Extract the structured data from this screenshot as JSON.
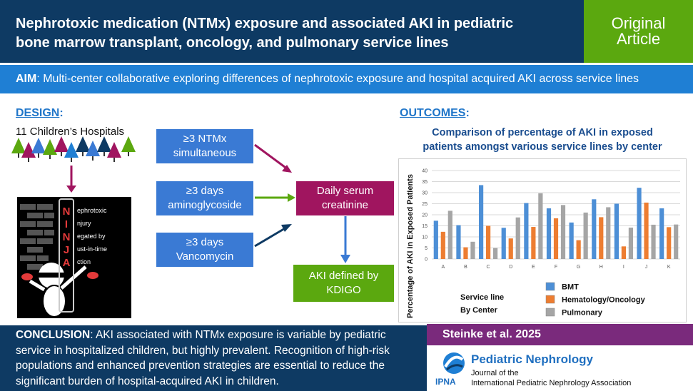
{
  "header": {
    "title_line1": "Nephrotoxic medication (NTMx) exposure and associated AKI in pediatric",
    "title_line2": "bone marrow transplant, oncology, and pulmonary service lines",
    "badge_line1": "Original",
    "badge_line2": "Article"
  },
  "aim": {
    "label": "AIM",
    "text": ": Multi-center collaborative exploring differences of nephrotoxic exposure and hospital acquired AKI across service lines"
  },
  "design": {
    "heading": "DESIGN",
    "colon": ":",
    "hospitals": "11 Children’s Hospitals",
    "ninja_letters": [
      "N",
      "I",
      "N",
      "J",
      "A"
    ],
    "ninja_words": [
      "ephrotoxic",
      "njury",
      "egated by",
      "ust-in-time",
      "ction"
    ],
    "boxes": [
      {
        "line1": "≥3 NTMx",
        "line2": "simultaneous"
      },
      {
        "line1": "≥3 days",
        "line2": "aminoglycoside"
      },
      {
        "line1": "≥3 days",
        "line2": "Vancomycin"
      }
    ],
    "center_box": {
      "line1": "Daily serum",
      "line2": "creatinine"
    },
    "result_box": {
      "line1": "AKI defined by",
      "line2": "KDIGO"
    }
  },
  "outcomes": {
    "heading": "OUTCOMES",
    "colon": ":"
  },
  "chart_data": {
    "type": "bar",
    "title_line1": "Comparison of percentage of AKI in exposed",
    "title_line2": "patients amongst various service lines by center",
    "ylabel": "Percentage of AKI in Exposed Patients",
    "xlabel_line1": "Service line",
    "xlabel_line2": "By Center",
    "ylim": [
      0,
      40
    ],
    "yticks": [
      "0",
      "5",
      "10",
      "15",
      "20",
      "25",
      "30",
      "35",
      "40"
    ],
    "categories": [
      "A",
      "B",
      "C",
      "D",
      "E",
      "F",
      "G",
      "H",
      "I",
      "J",
      "K"
    ],
    "series": [
      {
        "name": "BMT",
        "color": "#4d8fd6",
        "values": [
          17.3,
          15.3,
          33.4,
          14.1,
          25.3,
          22.9,
          16.5,
          27.0,
          25.0,
          32.2,
          22.9
        ]
      },
      {
        "name": "Hematology/Oncology",
        "color": "#ed7d31",
        "values": [
          12.3,
          5.3,
          15.0,
          9.3,
          14.5,
          18.4,
          8.5,
          18.9,
          5.7,
          25.5,
          14.4
        ]
      },
      {
        "name": "Pulmonary",
        "color": "#a5a5a5",
        "values": [
          21.8,
          7.8,
          5.0,
          18.8,
          29.7,
          24.4,
          21.0,
          23.4,
          14.2,
          15.5,
          15.6
        ]
      }
    ],
    "legend_position": "bottom-right",
    "grid": true
  },
  "conclusion": {
    "label": "CONCLUSION",
    "text": ": AKI associated with NTMx exposure is variable by pediatric service in hospitalized children, but highly prevalent. Recognition of high-risk populations and enhanced prevention strategies are essential to reduce the significant burden of hospital-acquired AKI in children."
  },
  "citation": "Steinke et al. 2025",
  "journal": {
    "name": "Pediatric Nephrology",
    "line2": "Journal of the",
    "line3": "International Pediatric Nephrology Association",
    "logo_text": "IPNA"
  },
  "colors": {
    "navy": "#0e3a63",
    "green": "#5ba80f",
    "accent_blue": "#1f7fd4",
    "box_blue": "#3a7ad4",
    "magenta": "#a0155f",
    "purple": "#7a2a7c"
  }
}
